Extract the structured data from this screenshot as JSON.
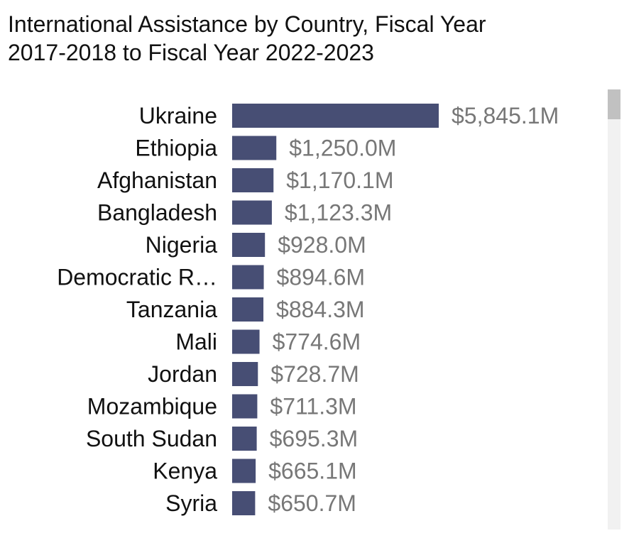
{
  "chart_data": {
    "type": "bar",
    "orientation": "horizontal",
    "title_lines": [
      "International Assistance by Country, Fiscal Year",
      "2017-2018 to Fiscal Year 2022-2023"
    ],
    "categories": [
      "Ukraine",
      "Ethiopia",
      "Afghanistan",
      "Bangladesh",
      "Nigeria",
      "Democratic R…",
      "Tanzania",
      "Mali",
      "Jordan",
      "Mozambique",
      "South Sudan",
      "Kenya",
      "Syria"
    ],
    "values": [
      5845.1,
      1250.0,
      1170.1,
      1123.3,
      928.0,
      894.6,
      884.3,
      774.6,
      728.7,
      711.3,
      695.3,
      665.1,
      650.7
    ],
    "value_labels": [
      "$5,845.1M",
      "$1,250.0M",
      "$1,170.1M",
      "$1,123.3M",
      "$928.0M",
      "$894.6M",
      "$884.3M",
      "$774.6M",
      "$728.7M",
      "$711.3M",
      "$695.3M",
      "$665.1M",
      "$650.7M"
    ],
    "unit": "$M",
    "xlabel": "",
    "ylabel": "",
    "xlim": [
      0,
      5845.1
    ],
    "grid": false,
    "bar_color": "#474e74",
    "value_label_color": "#777777"
  },
  "colors": {
    "scroll_track": "#f1f1f1",
    "scroll_thumb": "#c1c1c1"
  }
}
